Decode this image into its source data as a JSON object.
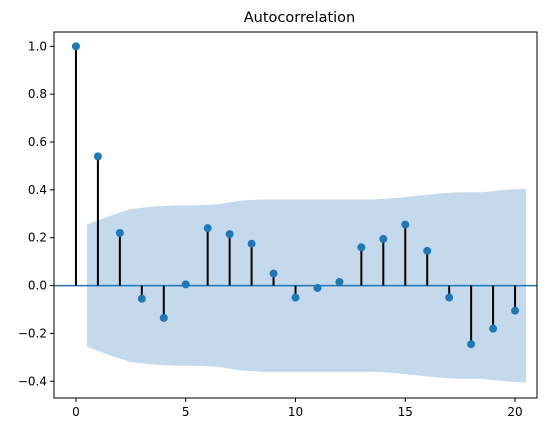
{
  "chart_data": {
    "type": "stem",
    "title": "Autocorrelation",
    "xlabel": "",
    "ylabel": "",
    "xlim": [
      -1,
      21
    ],
    "ylim": [
      -0.47,
      1.06
    ],
    "xticks": [
      0,
      5,
      10,
      15,
      20
    ],
    "yticks": [
      -0.4,
      -0.2,
      0.0,
      0.2,
      0.4,
      0.6,
      0.8,
      1.0
    ],
    "ytick_labels": [
      "−0.4",
      "−0.2",
      "0.0",
      "0.2",
      "0.4",
      "0.6",
      "0.8",
      "1.0"
    ],
    "grid": false,
    "lags": [
      0,
      1,
      2,
      3,
      4,
      5,
      6,
      7,
      8,
      9,
      10,
      11,
      12,
      13,
      14,
      15,
      16,
      17,
      18,
      19,
      20
    ],
    "values": [
      1.0,
      0.54,
      0.22,
      -0.055,
      -0.135,
      0.005,
      0.24,
      0.215,
      0.175,
      0.05,
      -0.05,
      -0.01,
      0.015,
      0.16,
      0.195,
      0.255,
      0.145,
      -0.05,
      -0.245,
      -0.18,
      -0.105
    ],
    "confidence_band": {
      "x": [
        0.5,
        1.5,
        2.5,
        3.5,
        4.5,
        5.5,
        6.5,
        7.5,
        8.5,
        9.5,
        10.5,
        11.5,
        12.5,
        13.5,
        14.5,
        15.5,
        16.5,
        17.5,
        18.5,
        19.5,
        20.5
      ],
      "upper": [
        0.255,
        0.29,
        0.32,
        0.33,
        0.335,
        0.335,
        0.34,
        0.355,
        0.36,
        0.36,
        0.36,
        0.36,
        0.36,
        0.36,
        0.365,
        0.375,
        0.385,
        0.39,
        0.39,
        0.4,
        0.405
      ],
      "lower": [
        -0.255,
        -0.29,
        -0.32,
        -0.33,
        -0.335,
        -0.335,
        -0.34,
        -0.355,
        -0.36,
        -0.36,
        -0.36,
        -0.36,
        -0.36,
        -0.36,
        -0.365,
        -0.375,
        -0.385,
        -0.39,
        -0.39,
        -0.4,
        -0.405
      ]
    },
    "colors": {
      "marker": "#1f77b4",
      "stem": "#000000",
      "band": "#c5d9ec",
      "zero_line": "#1f77b4",
      "axes": "#000000"
    }
  }
}
